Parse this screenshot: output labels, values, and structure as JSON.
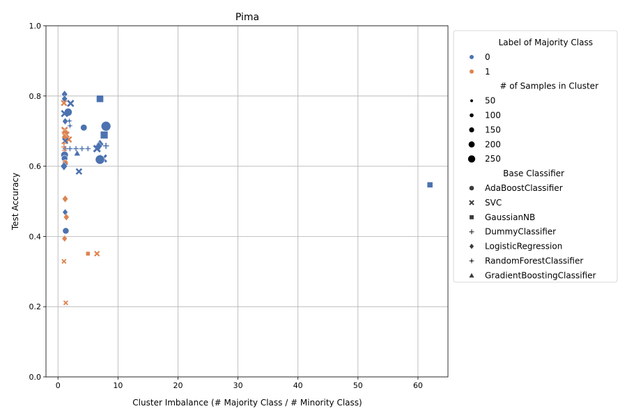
{
  "chart_data": {
    "type": "scatter",
    "title": "Pima",
    "xlabel": "Cluster Imbalance (# Majority Class / # Minority Class)",
    "ylabel": "Test Accuracy",
    "xlim": [
      -2,
      65
    ],
    "ylim": [
      0.0,
      1.0
    ],
    "xticks": [
      0,
      10,
      20,
      30,
      40,
      50,
      60
    ],
    "yticks": [
      0.0,
      0.2,
      0.4,
      0.6,
      0.8,
      1.0
    ],
    "grid": true,
    "legend_position": "outside-right",
    "legend": {
      "hue_title": "Label of Majority Class",
      "hue": [
        {
          "label": "0",
          "color": "#4c72b0"
        },
        {
          "label": "1",
          "color": "#dd8452"
        }
      ],
      "size_title": "# of Samples in Cluster",
      "sizes": [
        {
          "label": "50",
          "value": 50
        },
        {
          "label": "100",
          "value": 100
        },
        {
          "label": "150",
          "value": 150
        },
        {
          "label": "200",
          "value": 200
        },
        {
          "label": "250",
          "value": 250
        }
      ],
      "style_title": "Base Classifier",
      "styles": [
        {
          "label": "AdaBoostClassifier",
          "marker": "circle"
        },
        {
          "label": "SVC",
          "marker": "x"
        },
        {
          "label": "GaussianNB",
          "marker": "square"
        },
        {
          "label": "DummyClassifier",
          "marker": "plus"
        },
        {
          "label": "LogisticRegression",
          "marker": "diamond"
        },
        {
          "label": "RandomForestClassifier",
          "marker": "star"
        },
        {
          "label": "GradientBoostingClassifier",
          "marker": "triangle"
        }
      ]
    },
    "points": [
      {
        "x": 1.1,
        "y": 0.805,
        "label": "0",
        "classifier": "LogisticRegression",
        "n": 90
      },
      {
        "x": 1.1,
        "y": 0.792,
        "label": "0",
        "classifier": "LogisticRegression",
        "n": 80
      },
      {
        "x": 1.0,
        "y": 0.78,
        "label": "1",
        "classifier": "SVC",
        "n": 70
      },
      {
        "x": 2.1,
        "y": 0.779,
        "label": "0",
        "classifier": "SVC",
        "n": 110
      },
      {
        "x": 7.0,
        "y": 0.792,
        "label": "0",
        "classifier": "GaussianNB",
        "n": 150
      },
      {
        "x": 1.7,
        "y": 0.754,
        "label": "0",
        "classifier": "AdaBoostClassifier",
        "n": 150
      },
      {
        "x": 1.1,
        "y": 0.75,
        "label": "0",
        "classifier": "SVC",
        "n": 110
      },
      {
        "x": 1.2,
        "y": 0.728,
        "label": "0",
        "classifier": "LogisticRegression",
        "n": 70
      },
      {
        "x": 1.9,
        "y": 0.729,
        "label": "0",
        "classifier": "RandomForestClassifier",
        "n": 40
      },
      {
        "x": 2.0,
        "y": 0.715,
        "label": "0",
        "classifier": "RandomForestClassifier",
        "n": 40
      },
      {
        "x": 4.3,
        "y": 0.71,
        "label": "0",
        "classifier": "AdaBoostClassifier",
        "n": 90
      },
      {
        "x": 8.0,
        "y": 0.714,
        "label": "0",
        "classifier": "AdaBoostClassifier",
        "n": 260
      },
      {
        "x": 1.1,
        "y": 0.703,
        "label": "1",
        "classifier": "SVC",
        "n": 90
      },
      {
        "x": 1.2,
        "y": 0.695,
        "label": "1",
        "classifier": "AdaBoostClassifier",
        "n": 90
      },
      {
        "x": 1.4,
        "y": 0.69,
        "label": "1",
        "classifier": "SVC",
        "n": 80
      },
      {
        "x": 7.7,
        "y": 0.689,
        "label": "0",
        "classifier": "GaussianNB",
        "n": 180
      },
      {
        "x": 1.1,
        "y": 0.683,
        "label": "1",
        "classifier": "LogisticRegression",
        "n": 80
      },
      {
        "x": 1.8,
        "y": 0.676,
        "label": "1",
        "classifier": "SVC",
        "n": 80
      },
      {
        "x": 1.2,
        "y": 0.672,
        "label": "0",
        "classifier": "SVC",
        "n": 70
      },
      {
        "x": 1.0,
        "y": 0.665,
        "label": "1",
        "classifier": "DummyClassifier",
        "n": 50
      },
      {
        "x": 7.0,
        "y": 0.663,
        "label": "0",
        "classifier": "LogisticRegression",
        "n": 150
      },
      {
        "x": 6.8,
        "y": 0.657,
        "label": "0",
        "classifier": "LogisticRegression",
        "n": 130
      },
      {
        "x": 8.0,
        "y": 0.658,
        "label": "0",
        "classifier": "DummyClassifier",
        "n": 80
      },
      {
        "x": 6.5,
        "y": 0.65,
        "label": "0",
        "classifier": "SVC",
        "n": 130
      },
      {
        "x": 1.0,
        "y": 0.655,
        "label": "1",
        "classifier": "DummyClassifier",
        "n": 50
      },
      {
        "x": 1.2,
        "y": 0.65,
        "label": "0",
        "classifier": "DummyClassifier",
        "n": 50
      },
      {
        "x": 2.0,
        "y": 0.65,
        "label": "0",
        "classifier": "DummyClassifier",
        "n": 50
      },
      {
        "x": 3.0,
        "y": 0.65,
        "label": "0",
        "classifier": "DummyClassifier",
        "n": 50
      },
      {
        "x": 4.0,
        "y": 0.65,
        "label": "0",
        "classifier": "DummyClassifier",
        "n": 50
      },
      {
        "x": 5.0,
        "y": 0.65,
        "label": "0",
        "classifier": "DummyClassifier",
        "n": 50
      },
      {
        "x": 1.1,
        "y": 0.645,
        "label": "1",
        "classifier": "DummyClassifier",
        "n": 40
      },
      {
        "x": 3.2,
        "y": 0.637,
        "label": "0",
        "classifier": "GradientBoostingClassifier",
        "n": 60
      },
      {
        "x": 1.1,
        "y": 0.632,
        "label": "0",
        "classifier": "AdaBoostClassifier",
        "n": 130
      },
      {
        "x": 1.1,
        "y": 0.622,
        "label": "0",
        "classifier": "AdaBoostClassifier",
        "n": 80
      },
      {
        "x": 7.5,
        "y": 0.622,
        "label": "0",
        "classifier": "SVC",
        "n": 160
      },
      {
        "x": 7.0,
        "y": 0.619,
        "label": "0",
        "classifier": "AdaBoostClassifier",
        "n": 230
      },
      {
        "x": 1.2,
        "y": 0.61,
        "label": "1",
        "classifier": "AdaBoostClassifier",
        "n": 60
      },
      {
        "x": 1.2,
        "y": 0.605,
        "label": "0",
        "classifier": "DummyClassifier",
        "n": 40
      },
      {
        "x": 1.0,
        "y": 0.6,
        "label": "0",
        "classifier": "LogisticRegression",
        "n": 130
      },
      {
        "x": 3.5,
        "y": 0.585,
        "label": "0",
        "classifier": "SVC",
        "n": 80
      },
      {
        "x": 62.0,
        "y": 0.547,
        "label": "0",
        "classifier": "GaussianNB",
        "n": 80
      },
      {
        "x": 1.2,
        "y": 0.507,
        "label": "1",
        "classifier": "LogisticRegression",
        "n": 80
      },
      {
        "x": 1.2,
        "y": 0.469,
        "label": "0",
        "classifier": "LogisticRegression",
        "n": 60
      },
      {
        "x": 1.4,
        "y": 0.455,
        "label": "1",
        "classifier": "LogisticRegression",
        "n": 70
      },
      {
        "x": 1.3,
        "y": 0.416,
        "label": "0",
        "classifier": "AdaBoostClassifier",
        "n": 80
      },
      {
        "x": 1.1,
        "y": 0.394,
        "label": "1",
        "classifier": "LogisticRegression",
        "n": 60
      },
      {
        "x": 5.0,
        "y": 0.351,
        "label": "1",
        "classifier": "GaussianNB",
        "n": 30
      },
      {
        "x": 6.5,
        "y": 0.351,
        "label": "1",
        "classifier": "SVC",
        "n": 50
      },
      {
        "x": 1.0,
        "y": 0.329,
        "label": "1",
        "classifier": "SVC",
        "n": 30
      },
      {
        "x": 1.3,
        "y": 0.211,
        "label": "1",
        "classifier": "SVC",
        "n": 30
      }
    ]
  }
}
